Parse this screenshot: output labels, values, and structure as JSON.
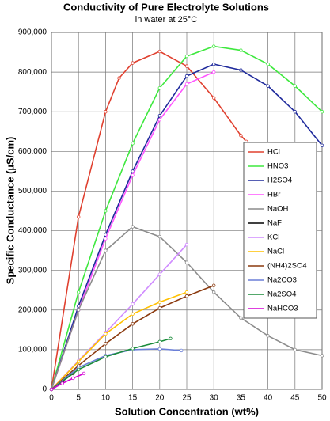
{
  "chart_data": {
    "type": "line",
    "title": "Conductivity of Pure Electrolyte Solutions",
    "subtitle": "in water at 25°C",
    "x_label": "Solution Concentration (wt%)",
    "y_label": "Specific Conductance (µS/cm)",
    "xlim": [
      0,
      50
    ],
    "xticks": [
      0,
      5,
      10,
      15,
      20,
      25,
      30,
      35,
      40,
      45,
      50
    ],
    "ylim": [
      0,
      900000
    ],
    "yticks": [
      0,
      {
        "value": 100000,
        "label": "100,000"
      },
      {
        "value": 200000,
        "label": "200,000"
      },
      {
        "value": 300000,
        "label": "300,000"
      },
      {
        "value": 400000,
        "label": "400,000"
      },
      {
        "value": 500000,
        "label": "500,000"
      },
      {
        "value": 600000,
        "label": "600,000"
      },
      {
        "value": 700000,
        "label": "700,000"
      },
      {
        "value": 800000,
        "label": "800,000"
      },
      {
        "value": 900000,
        "label": "900,000"
      }
    ],
    "grid": true,
    "legend": "right",
    "series": [
      {
        "name": "HCl",
        "color": "#e0402f",
        "x": [
          0,
          5,
          10,
          12.5,
          15,
          20,
          25,
          30,
          35,
          36
        ],
        "values": [
          0,
          435000,
          700000,
          785000,
          823000,
          852000,
          815000,
          735000,
          640000,
          625000
        ]
      },
      {
        "name": "HNO3",
        "color": "#3ee83e",
        "x": [
          0,
          5,
          10,
          15,
          20,
          25,
          30,
          35,
          40,
          45,
          50
        ],
        "values": [
          0,
          245000,
          450000,
          620000,
          760000,
          840000,
          865000,
          855000,
          820000,
          765000,
          700000
        ]
      },
      {
        "name": "H2SO4",
        "color": "#1f2a9c",
        "x": [
          0,
          5,
          10,
          15,
          20,
          25,
          30,
          35,
          40,
          45,
          50
        ],
        "values": [
          0,
          210000,
          390000,
          550000,
          690000,
          790000,
          820000,
          805000,
          765000,
          700000,
          615000
        ]
      },
      {
        "name": "HBr",
        "color": "#ff55ff",
        "x": [
          0,
          5,
          10,
          15,
          20,
          25,
          30
        ],
        "values": [
          0,
          200000,
          380000,
          540000,
          680000,
          770000,
          800000
        ]
      },
      {
        "name": "NaOH",
        "color": "#8c8c8c",
        "x": [
          0,
          5,
          10,
          15,
          20,
          25,
          30,
          35,
          40,
          45,
          50
        ],
        "values": [
          0,
          200000,
          350000,
          410000,
          385000,
          320000,
          245000,
          180000,
          135000,
          100000,
          85000
        ]
      },
      {
        "name": "NaF",
        "color": "#000000",
        "x": [
          0,
          2,
          4
        ],
        "values": [
          0,
          20000,
          40000
        ]
      },
      {
        "name": "KCl",
        "color": "#d08cff",
        "x": [
          0,
          5,
          10,
          15,
          20,
          25
        ],
        "values": [
          0,
          72000,
          143000,
          215000,
          290000,
          365000
        ]
      },
      {
        "name": "NaCl",
        "color": "#ffc000",
        "x": [
          0,
          5,
          10,
          15,
          20,
          25
        ],
        "values": [
          0,
          70000,
          140000,
          190000,
          220000,
          245000
        ]
      },
      {
        "name": "(NH4)2SO4",
        "color": "#8b3a0f",
        "x": [
          0,
          5,
          10,
          15,
          20,
          25,
          30
        ],
        "values": [
          0,
          60000,
          115000,
          165000,
          205000,
          235000,
          262000
        ]
      },
      {
        "name": "Na2CO3",
        "color": "#6b7fd7",
        "x": [
          0,
          5,
          10,
          15,
          20,
          24
        ],
        "values": [
          0,
          55000,
          85000,
          100000,
          102000,
          98000
        ]
      },
      {
        "name": "Na2SO4",
        "color": "#1a8c3a",
        "x": [
          0,
          5,
          10,
          15,
          20,
          22
        ],
        "values": [
          0,
          50000,
          82000,
          103000,
          120000,
          128000
        ]
      },
      {
        "name": "NaHCO3",
        "color": "#d400d4",
        "x": [
          0,
          2,
          4,
          6
        ],
        "values": [
          0,
          15000,
          28000,
          40000
        ]
      }
    ]
  }
}
